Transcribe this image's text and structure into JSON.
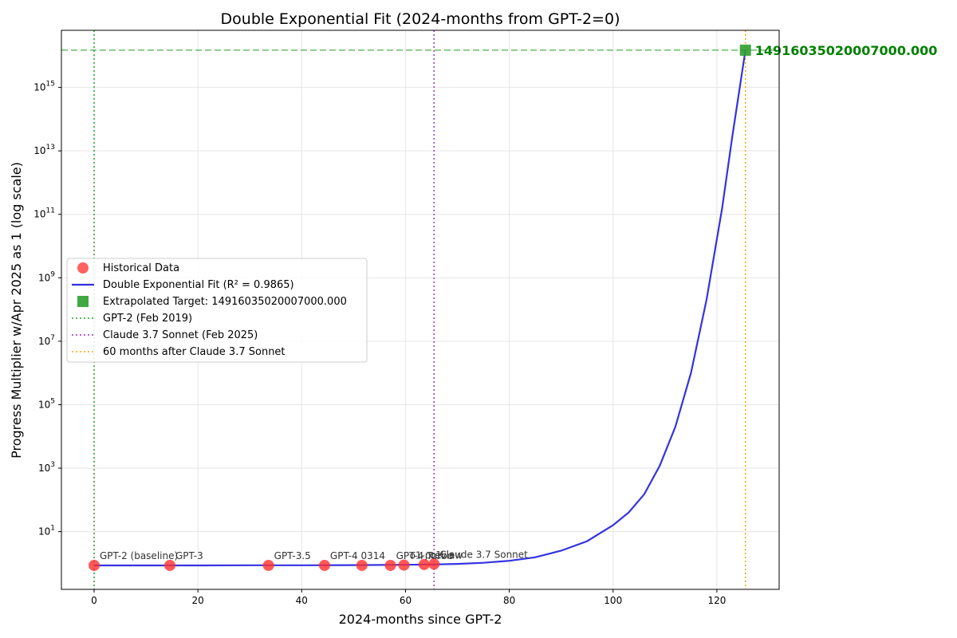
{
  "chart_data": {
    "type": "scatter",
    "title": "Double Exponential Fit (2024-months from GPT-2=0)",
    "xlabel": "2024-months since GPT-2",
    "ylabel": "Progress Multiplier w/Apr 2025 as 1 (log scale)",
    "y_scale": "log",
    "xlim": [
      -6.3,
      132
    ],
    "ylim_log10": [
      -0.82,
      16.8
    ],
    "x_ticks": [
      0,
      20,
      40,
      60,
      80,
      100,
      120
    ],
    "y_ticks": [
      {
        "exp": 1,
        "base": "10",
        "sup": "1"
      },
      {
        "exp": 3,
        "base": "10",
        "sup": "3"
      },
      {
        "exp": 5,
        "base": "10",
        "sup": "5"
      },
      {
        "exp": 7,
        "base": "10",
        "sup": "7"
      },
      {
        "exp": 9,
        "base": "10",
        "sup": "9"
      },
      {
        "exp": 11,
        "base": "10",
        "sup": "11"
      },
      {
        "exp": 13,
        "base": "10",
        "sup": "13"
      },
      {
        "exp": 15,
        "base": "10",
        "sup": "15"
      }
    ],
    "grid": true,
    "legend_position": "center-left",
    "historical_points": [
      {
        "label": "GPT-2 (baseline)",
        "x": 0,
        "y": 0.86
      },
      {
        "label": "GPT-3",
        "x": 14.6,
        "y": 0.86
      },
      {
        "label": "GPT-3.5",
        "x": 33.6,
        "y": 0.86
      },
      {
        "label": "GPT-4 0314",
        "x": 44.4,
        "y": 0.86
      },
      {
        "label": "",
        "x": 51.6,
        "y": 0.86
      },
      {
        "label": "GPT-4 Turbo",
        "x": 57.1,
        "y": 0.86
      },
      {
        "label": "o1-preview",
        "x": 59.7,
        "y": 0.88
      },
      {
        "label": "o1",
        "x": 63.6,
        "y": 0.92
      },
      {
        "label": "Claude 3.7 Sonnet",
        "x": 65.5,
        "y": 0.95
      }
    ],
    "fit_curve": {
      "name": "Double Exponential Fit (R² = 0.9865)",
      "x_samples": [
        0,
        10,
        20,
        30,
        40,
        50,
        60,
        65,
        70,
        75,
        80,
        85,
        90,
        95,
        100,
        103,
        106,
        109,
        112,
        115,
        118,
        121,
        123,
        125.5
      ],
      "y_samples": [
        0.86,
        0.86,
        0.86,
        0.87,
        0.87,
        0.88,
        0.9,
        0.92,
        0.96,
        1.04,
        1.2,
        1.55,
        2.5,
        5.0,
        16,
        40,
        150,
        1200,
        20000,
        1000000,
        200000000,
        150000000000.0,
        30000000000000.0,
        1.4916e+16
      ]
    },
    "target": {
      "x": 125.5,
      "y": 14916035020007000,
      "label": "14916035020007000.000"
    },
    "vlines": [
      {
        "name": "GPT-2 (Feb 2019)",
        "x": 0,
        "color": "#2ca02c"
      },
      {
        "name": "Claude 3.7 Sonnet (Feb 2025)",
        "x": 65.5,
        "color": "#9932cc"
      },
      {
        "name": "60 months after Claude 3.7 Sonnet",
        "x": 125.5,
        "color": "#ffa500"
      }
    ],
    "hline": {
      "y": 14916035020007000,
      "color": "#2ca02c"
    },
    "legend": [
      {
        "kind": "circle",
        "color": "#f44",
        "label": "Historical Data"
      },
      {
        "kind": "line",
        "color": "#3030e0",
        "label": "Double Exponential Fit (R² = 0.9865)"
      },
      {
        "kind": "square",
        "color": "#2e9e2e",
        "label": "Extrapolated Target: 14916035020007000.000"
      },
      {
        "kind": "dotted",
        "color": "#2ca02c",
        "label": "GPT-2 (Feb 2019)"
      },
      {
        "kind": "dotted",
        "color": "#9932cc",
        "label": "Claude 3.7 Sonnet (Feb 2025)"
      },
      {
        "kind": "dotted",
        "color": "#ffa500",
        "label": "60 months after Claude 3.7 Sonnet"
      }
    ],
    "colors": {
      "points": "#ff3030",
      "fit": "#2828e0",
      "target": "#2e9e2e",
      "target_text": "#008000"
    }
  }
}
